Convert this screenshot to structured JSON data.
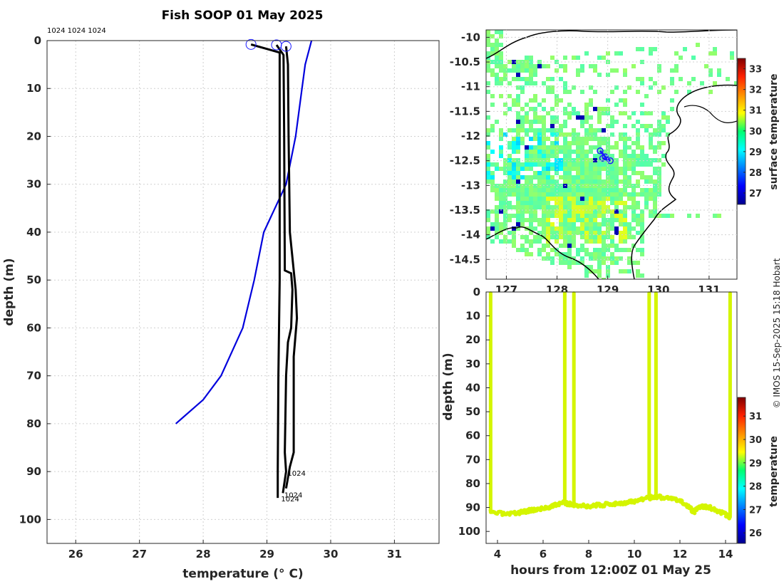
{
  "title": "Fish SOOP 01 May 2025",
  "credit": "© IMOS 15-Sep-2025 15:18 Hobart",
  "colors": {
    "model_line": "#0000dd",
    "cast_line": "#000000",
    "marker": "#1a1aff",
    "sample_dots": "#d4f500",
    "land": "#ffffff",
    "coast": "#000000"
  },
  "chart_data": [
    {
      "name": "profile",
      "type": "line",
      "xlabel": "temperature (° C)",
      "ylabel": "depth (m)",
      "xlim": [
        25.55,
        31.7
      ],
      "ylim": [
        105,
        0
      ],
      "xticks": [
        "26",
        "27",
        "28",
        "29",
        "30",
        "31"
      ],
      "yticks": [
        "0",
        "10",
        "20",
        "30",
        "40",
        "50",
        "60",
        "70",
        "80",
        "90",
        "100"
      ],
      "top_labels": "1024 1024 1024",
      "bottom_labels": [
        "1024",
        "1024",
        "1024"
      ],
      "surface_markers": [
        [
          28.75,
          0.8
        ],
        [
          29.15,
          0.9
        ],
        [
          29.3,
          1.2
        ]
      ],
      "series": [
        {
          "name": "climatology",
          "color": "#0000dd",
          "points": [
            [
              29.7,
              0
            ],
            [
              29.6,
              5
            ],
            [
              29.55,
              10
            ],
            [
              29.45,
              20
            ],
            [
              29.3,
              30
            ],
            [
              28.95,
              40
            ],
            [
              28.8,
              50
            ],
            [
              28.62,
              60
            ],
            [
              28.28,
              70
            ],
            [
              28.0,
              75
            ],
            [
              27.57,
              80
            ]
          ]
        },
        {
          "name": "cast-1",
          "color": "#000000",
          "points": [
            [
              28.75,
              0.8
            ],
            [
              29.2,
              2.5
            ],
            [
              29.2,
              10
            ],
            [
              29.2,
              30
            ],
            [
              29.2,
              50
            ],
            [
              29.18,
              70
            ],
            [
              29.17,
              90
            ],
            [
              29.17,
              95.5
            ]
          ]
        },
        {
          "name": "cast-2",
          "color": "#000000",
          "points": [
            [
              29.15,
              0.9
            ],
            [
              29.26,
              3
            ],
            [
              29.27,
              20
            ],
            [
              29.28,
              48
            ],
            [
              29.38,
              48.6
            ],
            [
              29.4,
              52
            ],
            [
              29.38,
              60
            ],
            [
              29.33,
              63
            ],
            [
              29.3,
              70
            ],
            [
              29.28,
              86
            ],
            [
              29.3,
              90
            ],
            [
              29.25,
              94.5
            ]
          ]
        },
        {
          "name": "cast-3",
          "color": "#000000",
          "points": [
            [
              29.3,
              1.2
            ],
            [
              29.33,
              5
            ],
            [
              29.34,
              20
            ],
            [
              29.36,
              40
            ],
            [
              29.45,
              52
            ],
            [
              29.47,
              58
            ],
            [
              29.42,
              66
            ],
            [
              29.42,
              86
            ],
            [
              29.36,
              89
            ],
            [
              29.3,
              93.5
            ]
          ]
        }
      ]
    },
    {
      "name": "map",
      "type": "heatmap",
      "colorbar_label": "surface temperature",
      "colorbar_range": [
        26.45,
        33.5
      ],
      "colorbar_ticks": [
        "27",
        "28",
        "29",
        "30",
        "31",
        "32",
        "33"
      ],
      "xlim": [
        126.6,
        131.55
      ],
      "ylim": [
        -14.9,
        -9.85
      ],
      "xticks": [
        "127",
        "128",
        "129",
        "130",
        "131"
      ],
      "yticks": [
        "-10",
        "-10.5",
        "-11",
        "-11.5",
        "-12",
        "-12.5",
        "-13",
        "-13.5",
        "-14",
        "-14.5"
      ],
      "track": [
        [
          128.85,
          -12.3
        ],
        [
          128.95,
          -12.42
        ],
        [
          129.05,
          -12.5
        ],
        [
          128.9,
          -12.45
        ]
      ]
    },
    {
      "name": "section",
      "type": "scatter",
      "xlabel": "hours from 12:00Z 01 May 25",
      "ylabel": "depth (m)",
      "colorbar_label": "temperature",
      "colorbar_range": [
        25.55,
        31.8
      ],
      "colorbar_ticks": [
        "26",
        "27",
        "28",
        "29",
        "30",
        "31"
      ],
      "xlim": [
        3.5,
        14.5
      ],
      "ylim": [
        105,
        0
      ],
      "xticks": [
        "4",
        "6",
        "8",
        "10",
        "12",
        "14"
      ],
      "yticks": [
        "0",
        "10",
        "20",
        "30",
        "40",
        "50",
        "60",
        "70",
        "80",
        "90",
        "100"
      ],
      "casts": [
        [
          3.7,
          92
        ],
        [
          6.95,
          88
        ],
        [
          7.35,
          89
        ],
        [
          10.65,
          86
        ],
        [
          10.95,
          85.5
        ],
        [
          14.2,
          94
        ]
      ],
      "bottom_track": [
        [
          3.7,
          92
        ],
        [
          4.5,
          93
        ],
        [
          5.0,
          92
        ],
        [
          5.5,
          91
        ],
        [
          6.0,
          90.5
        ],
        [
          6.5,
          89
        ],
        [
          6.95,
          88
        ],
        [
          7.35,
          89
        ],
        [
          8.0,
          89.5
        ],
        [
          8.5,
          89
        ],
        [
          9.0,
          88.5
        ],
        [
          9.5,
          88
        ],
        [
          10.0,
          87.5
        ],
        [
          10.65,
          86
        ],
        [
          10.95,
          85.5
        ],
        [
          11.5,
          86
        ],
        [
          12.0,
          87.5
        ],
        [
          12.4,
          89.5
        ],
        [
          12.6,
          92
        ],
        [
          12.9,
          89.5
        ],
        [
          13.3,
          90
        ],
        [
          13.7,
          91.5
        ],
        [
          14.2,
          94
        ]
      ]
    }
  ]
}
